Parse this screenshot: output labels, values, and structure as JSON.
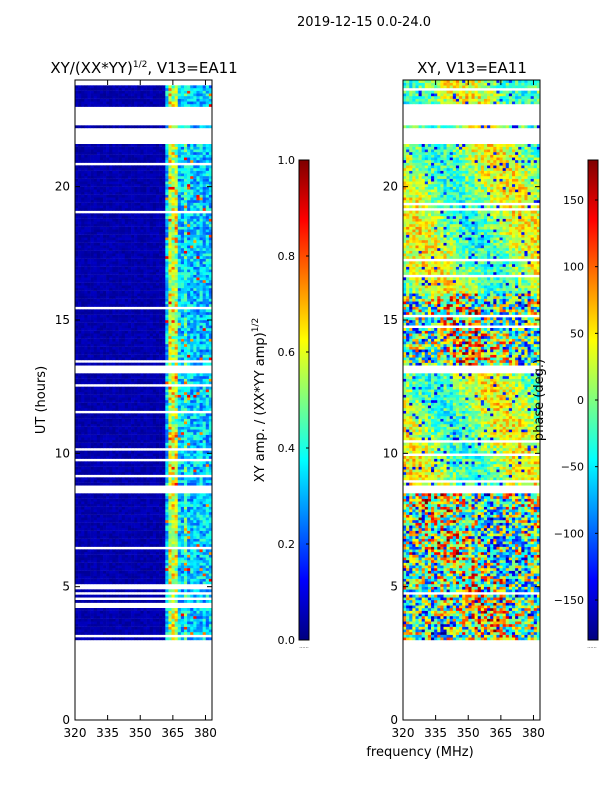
{
  "figure_title": "2019-12-15 0.0-24.0",
  "colors": {
    "jet": [
      "#00007f",
      "#0000ff",
      "#007fff",
      "#00ffff",
      "#7fff7f",
      "#ffff00",
      "#ff7f00",
      "#ff0000",
      "#7f0000"
    ],
    "missing": "#ffffff",
    "axis": "#000000"
  },
  "chart_data": [
    {
      "type": "heatmap",
      "title_base": "XY/(XX*YY)",
      "title_exponent": "1/2",
      "title_suffix": ", V13=EA11",
      "ylabel": "UT (hours)",
      "xlabel": "",
      "xlim": [
        320,
        383
      ],
      "ylim": [
        0,
        24
      ],
      "xticks": [
        320,
        335,
        350,
        365,
        380
      ],
      "xtick_labels": [
        "320",
        "335",
        "350",
        "365",
        "380"
      ],
      "yticks": [
        0,
        5,
        10,
        15,
        20
      ],
      "ytick_labels": [
        "0",
        "5",
        "10",
        "15",
        "20"
      ],
      "data_hours": [
        3.0,
        24.0
      ],
      "empty_hour_bands": [
        [
          21.6,
          22.2
        ],
        [
          22.3,
          23.0
        ],
        [
          8.5,
          8.8
        ],
        [
          13.0,
          13.3
        ],
        [
          4.7,
          4.8
        ]
      ],
      "colorbar": {
        "label_base": "XY amp. / (XX*YY amp)",
        "label_exponent": "1/2",
        "range": [
          0.0,
          1.0
        ],
        "ticks": [
          0.0,
          0.2,
          0.4,
          0.6,
          0.8,
          1.0
        ],
        "tick_labels": [
          "0.0",
          "0.2",
          "0.4",
          "0.6",
          "0.8",
          "1.0"
        ],
        "footnote": "......"
      },
      "value_model": "normalized amplitude: near 0.0 (dark blue) below 361 MHz, 0.2-0.6 (blue to green, some yellow/orange) in 362-383 MHz"
    },
    {
      "type": "heatmap",
      "title": "XY, V13=EA11",
      "ylabel": "",
      "xlabel": "frequency (MHz)",
      "xlim": [
        320,
        383
      ],
      "ylim": [
        0,
        24
      ],
      "xticks": [
        320,
        335,
        350,
        365,
        380
      ],
      "xtick_labels": [
        "320",
        "335",
        "350",
        "365",
        "380"
      ],
      "yticks": [
        0,
        5,
        10,
        15,
        20
      ],
      "ytick_labels": [
        "0",
        "5",
        "10",
        "15",
        "20"
      ],
      "data_hours": [
        3.0,
        24.0
      ],
      "empty_hour_bands": [
        [
          21.6,
          22.2
        ],
        [
          22.3,
          23.0
        ],
        [
          8.5,
          8.8
        ],
        [
          13.0,
          13.3
        ],
        [
          4.7,
          4.8
        ]
      ],
      "colorbar": {
        "label": "phase (deg.)",
        "range": [
          -180,
          180
        ],
        "ticks": [
          -150,
          -100,
          -50,
          0,
          50,
          100,
          150
        ],
        "tick_labels": [
          "−150",
          "−100",
          "−50",
          "0",
          "50",
          "100",
          "150"
        ],
        "footnote": "......"
      },
      "value_model": "phase in degrees spanning -180 to 180, mostly -50 to 100 (green/yellow) with noisy red/blue rows"
    }
  ]
}
